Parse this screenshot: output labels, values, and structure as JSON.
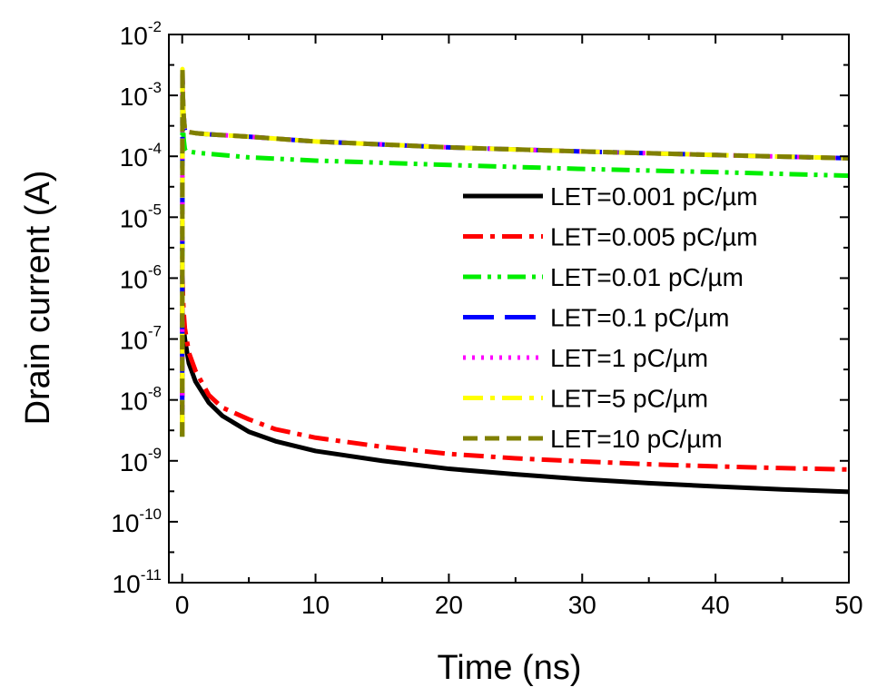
{
  "chart_data": {
    "type": "line",
    "title": "",
    "xlabel": "Time (ns)",
    "ylabel": "Drain current (A)",
    "xlim": [
      -1,
      50
    ],
    "ylim": [
      1e-11,
      0.01
    ],
    "yscale": "log",
    "xticks": [
      0,
      10,
      20,
      30,
      40,
      50
    ],
    "yticks": [
      {
        "base": "10",
        "exp": "-11",
        "value": 1e-11
      },
      {
        "base": "10",
        "exp": "-10",
        "value": 1e-10
      },
      {
        "base": "10",
        "exp": "-9",
        "value": 1e-09
      },
      {
        "base": "10",
        "exp": "-8",
        "value": 1e-08
      },
      {
        "base": "10",
        "exp": "-7",
        "value": 1e-07
      },
      {
        "base": "10",
        "exp": "-6",
        "value": 1e-06
      },
      {
        "base": "10",
        "exp": "-5",
        "value": 1e-05
      },
      {
        "base": "10",
        "exp": "-4",
        "value": 0.0001
      },
      {
        "base": "10",
        "exp": "-3",
        "value": 0.001
      },
      {
        "base": "10",
        "exp": "-2",
        "value": 0.01
      }
    ],
    "legend_position": "right-middle",
    "series": [
      {
        "name": "LET=0.001 pC/µm",
        "color": "#000000",
        "style": "solid",
        "x": [
          0,
          0.02,
          0.05,
          0.1,
          0.2,
          0.5,
          1,
          2,
          3,
          5,
          7,
          10,
          15,
          20,
          25,
          30,
          35,
          40,
          45,
          50
        ],
        "y": [
          1.5e-07,
          3e-07,
          2e-07,
          1.6e-07,
          1e-07,
          4e-08,
          2e-08,
          9e-09,
          5.5e-09,
          3e-09,
          2.1e-09,
          1.45e-09,
          1e-09,
          7.4e-10,
          6e-10,
          5e-10,
          4.3e-10,
          3.8e-10,
          3.4e-10,
          3.1e-10
        ]
      },
      {
        "name": "LET=0.005 pC/µm",
        "color": "#ff0000",
        "style": "dashdot",
        "x": [
          0,
          0.02,
          0.05,
          0.1,
          0.2,
          0.5,
          1,
          2,
          3,
          5,
          7,
          10,
          15,
          20,
          25,
          30,
          35,
          40,
          45,
          50
        ],
        "y": [
          2.5e-09,
          1e-06,
          6e-07,
          3e-07,
          1.5e-07,
          6e-08,
          3e-08,
          1.2e-08,
          7.5e-09,
          4.8e-09,
          3.3e-09,
          2.4e-09,
          1.7e-09,
          1.3e-09,
          1.1e-09,
          9.8e-10,
          8.8e-10,
          8.1e-10,
          7.6e-10,
          7.2e-10
        ]
      },
      {
        "name": "LET=0.01 pC/µm",
        "color": "#00ee00",
        "style": "dashdotdot",
        "x": [
          0,
          0.02,
          0.05,
          0.1,
          0.2,
          0.3,
          0.5,
          1,
          2,
          5,
          10,
          20,
          30,
          40,
          50
        ],
        "y": [
          2.5e-09,
          0.0015,
          0.0005,
          0.0002,
          0.00013,
          0.00012,
          0.00012,
          0.000115,
          0.00011,
          9.6e-05,
          8.5e-05,
          7.2e-05,
          6.2e-05,
          5.5e-05,
          4.8e-05
        ]
      },
      {
        "name": "LET=0.1 pC/µm",
        "color": "#0000ff",
        "style": "longdash",
        "x": [
          0,
          0.02,
          0.05,
          0.1,
          0.2,
          0.3,
          0.5,
          1,
          2,
          5,
          10,
          20,
          30,
          40,
          50
        ],
        "y": [
          5e-09,
          0.0025,
          0.001,
          0.0005,
          0.00027,
          0.00026,
          0.00025,
          0.00024,
          0.00023,
          0.00021,
          0.000175,
          0.00014,
          0.00012,
          0.000105,
          9.3e-05
        ]
      },
      {
        "name": "LET=1 pC/µm",
        "color": "#ff00ff",
        "style": "dotted",
        "x": [
          0,
          0.02,
          0.05,
          0.1,
          0.2,
          0.3,
          0.5,
          1,
          2,
          5,
          10,
          20,
          30,
          40,
          50
        ],
        "y": [
          3e-09,
          0.0026,
          0.001,
          0.0005,
          0.00027,
          0.00026,
          0.00025,
          0.00024,
          0.00023,
          0.00021,
          0.000175,
          0.00014,
          0.00012,
          0.000105,
          9.3e-05
        ]
      },
      {
        "name": "LET=5 pC/µm",
        "color": "#ffff00",
        "style": "dashdot",
        "x": [
          0,
          0.02,
          0.05,
          0.1,
          0.2,
          0.3,
          0.5,
          1,
          2,
          5,
          10,
          20,
          30,
          40,
          50
        ],
        "y": [
          3e-09,
          0.0027,
          0.001,
          0.0005,
          0.00027,
          0.00026,
          0.00025,
          0.00024,
          0.00023,
          0.00021,
          0.000175,
          0.00014,
          0.00012,
          0.000105,
          9.3e-05
        ]
      },
      {
        "name": "LET=10 pC/µm",
        "color": "#808000",
        "style": "dashed",
        "x": [
          0,
          0.02,
          0.05,
          0.1,
          0.2,
          0.3,
          0.5,
          1,
          2,
          5,
          10,
          20,
          30,
          40,
          50
        ],
        "y": [
          2.5e-09,
          0.0028,
          0.001,
          0.0005,
          0.00027,
          0.00026,
          0.00025,
          0.00024,
          0.00023,
          0.00021,
          0.000175,
          0.00014,
          0.00012,
          0.000105,
          9.3e-05
        ]
      }
    ]
  }
}
